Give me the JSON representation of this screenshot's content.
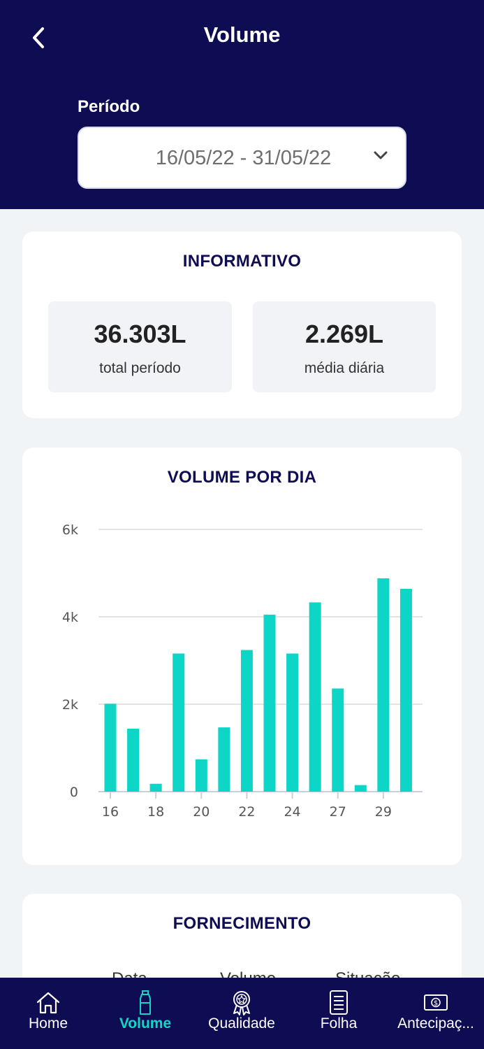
{
  "header": {
    "title": "Volume",
    "period_label": "Período",
    "period_value": "16/05/22 - 31/05/22"
  },
  "informativo": {
    "title": "INFORMATIVO",
    "total_value": "36.303L",
    "total_label": "total período",
    "avg_value": "2.269L",
    "avg_label": "média diária"
  },
  "chart_card": {
    "title": "VOLUME POR DIA"
  },
  "chart_data": {
    "type": "bar",
    "title": "VOLUME POR DIA",
    "xlabel": "",
    "ylabel": "",
    "ylim": [
      0,
      6000
    ],
    "yticks": [
      0,
      2000,
      4000,
      6000
    ],
    "ytick_labels": [
      "0",
      "2k",
      "4k",
      "6k"
    ],
    "categories": [
      "16",
      "17",
      "18",
      "19",
      "20",
      "21",
      "22",
      "23",
      "24",
      "25",
      "27",
      "28",
      "29",
      "30"
    ],
    "xtick_labels": [
      {
        "index": 0,
        "label": "16"
      },
      {
        "index": 2,
        "label": "18"
      },
      {
        "index": 4,
        "label": "20"
      },
      {
        "index": 6,
        "label": "22"
      },
      {
        "index": 8,
        "label": "24"
      },
      {
        "index": 10,
        "label": "27"
      },
      {
        "index": 12,
        "label": "29"
      }
    ],
    "values": [
      2010,
      1440,
      180,
      3160,
      740,
      1470,
      3240,
      4050,
      3160,
      4330,
      2360,
      150,
      4880,
      4640
    ],
    "bar_color": "#0dd6c6",
    "grid": true
  },
  "fornecimento": {
    "title": "FORNECIMENTO",
    "columns": [
      "Data",
      "Volume",
      "Situação"
    ]
  },
  "nav": {
    "items": [
      {
        "label": "Home",
        "icon": "home-icon"
      },
      {
        "label": "Volume",
        "icon": "bottle-icon"
      },
      {
        "label": "Qualidade",
        "icon": "award-icon"
      },
      {
        "label": "Folha",
        "icon": "document-icon"
      },
      {
        "label": "Antecipaç...",
        "icon": "money-icon"
      }
    ]
  },
  "colors": {
    "primary": "#0e0c52",
    "accent": "#10d6c8",
    "background": "#f1f4f7"
  }
}
